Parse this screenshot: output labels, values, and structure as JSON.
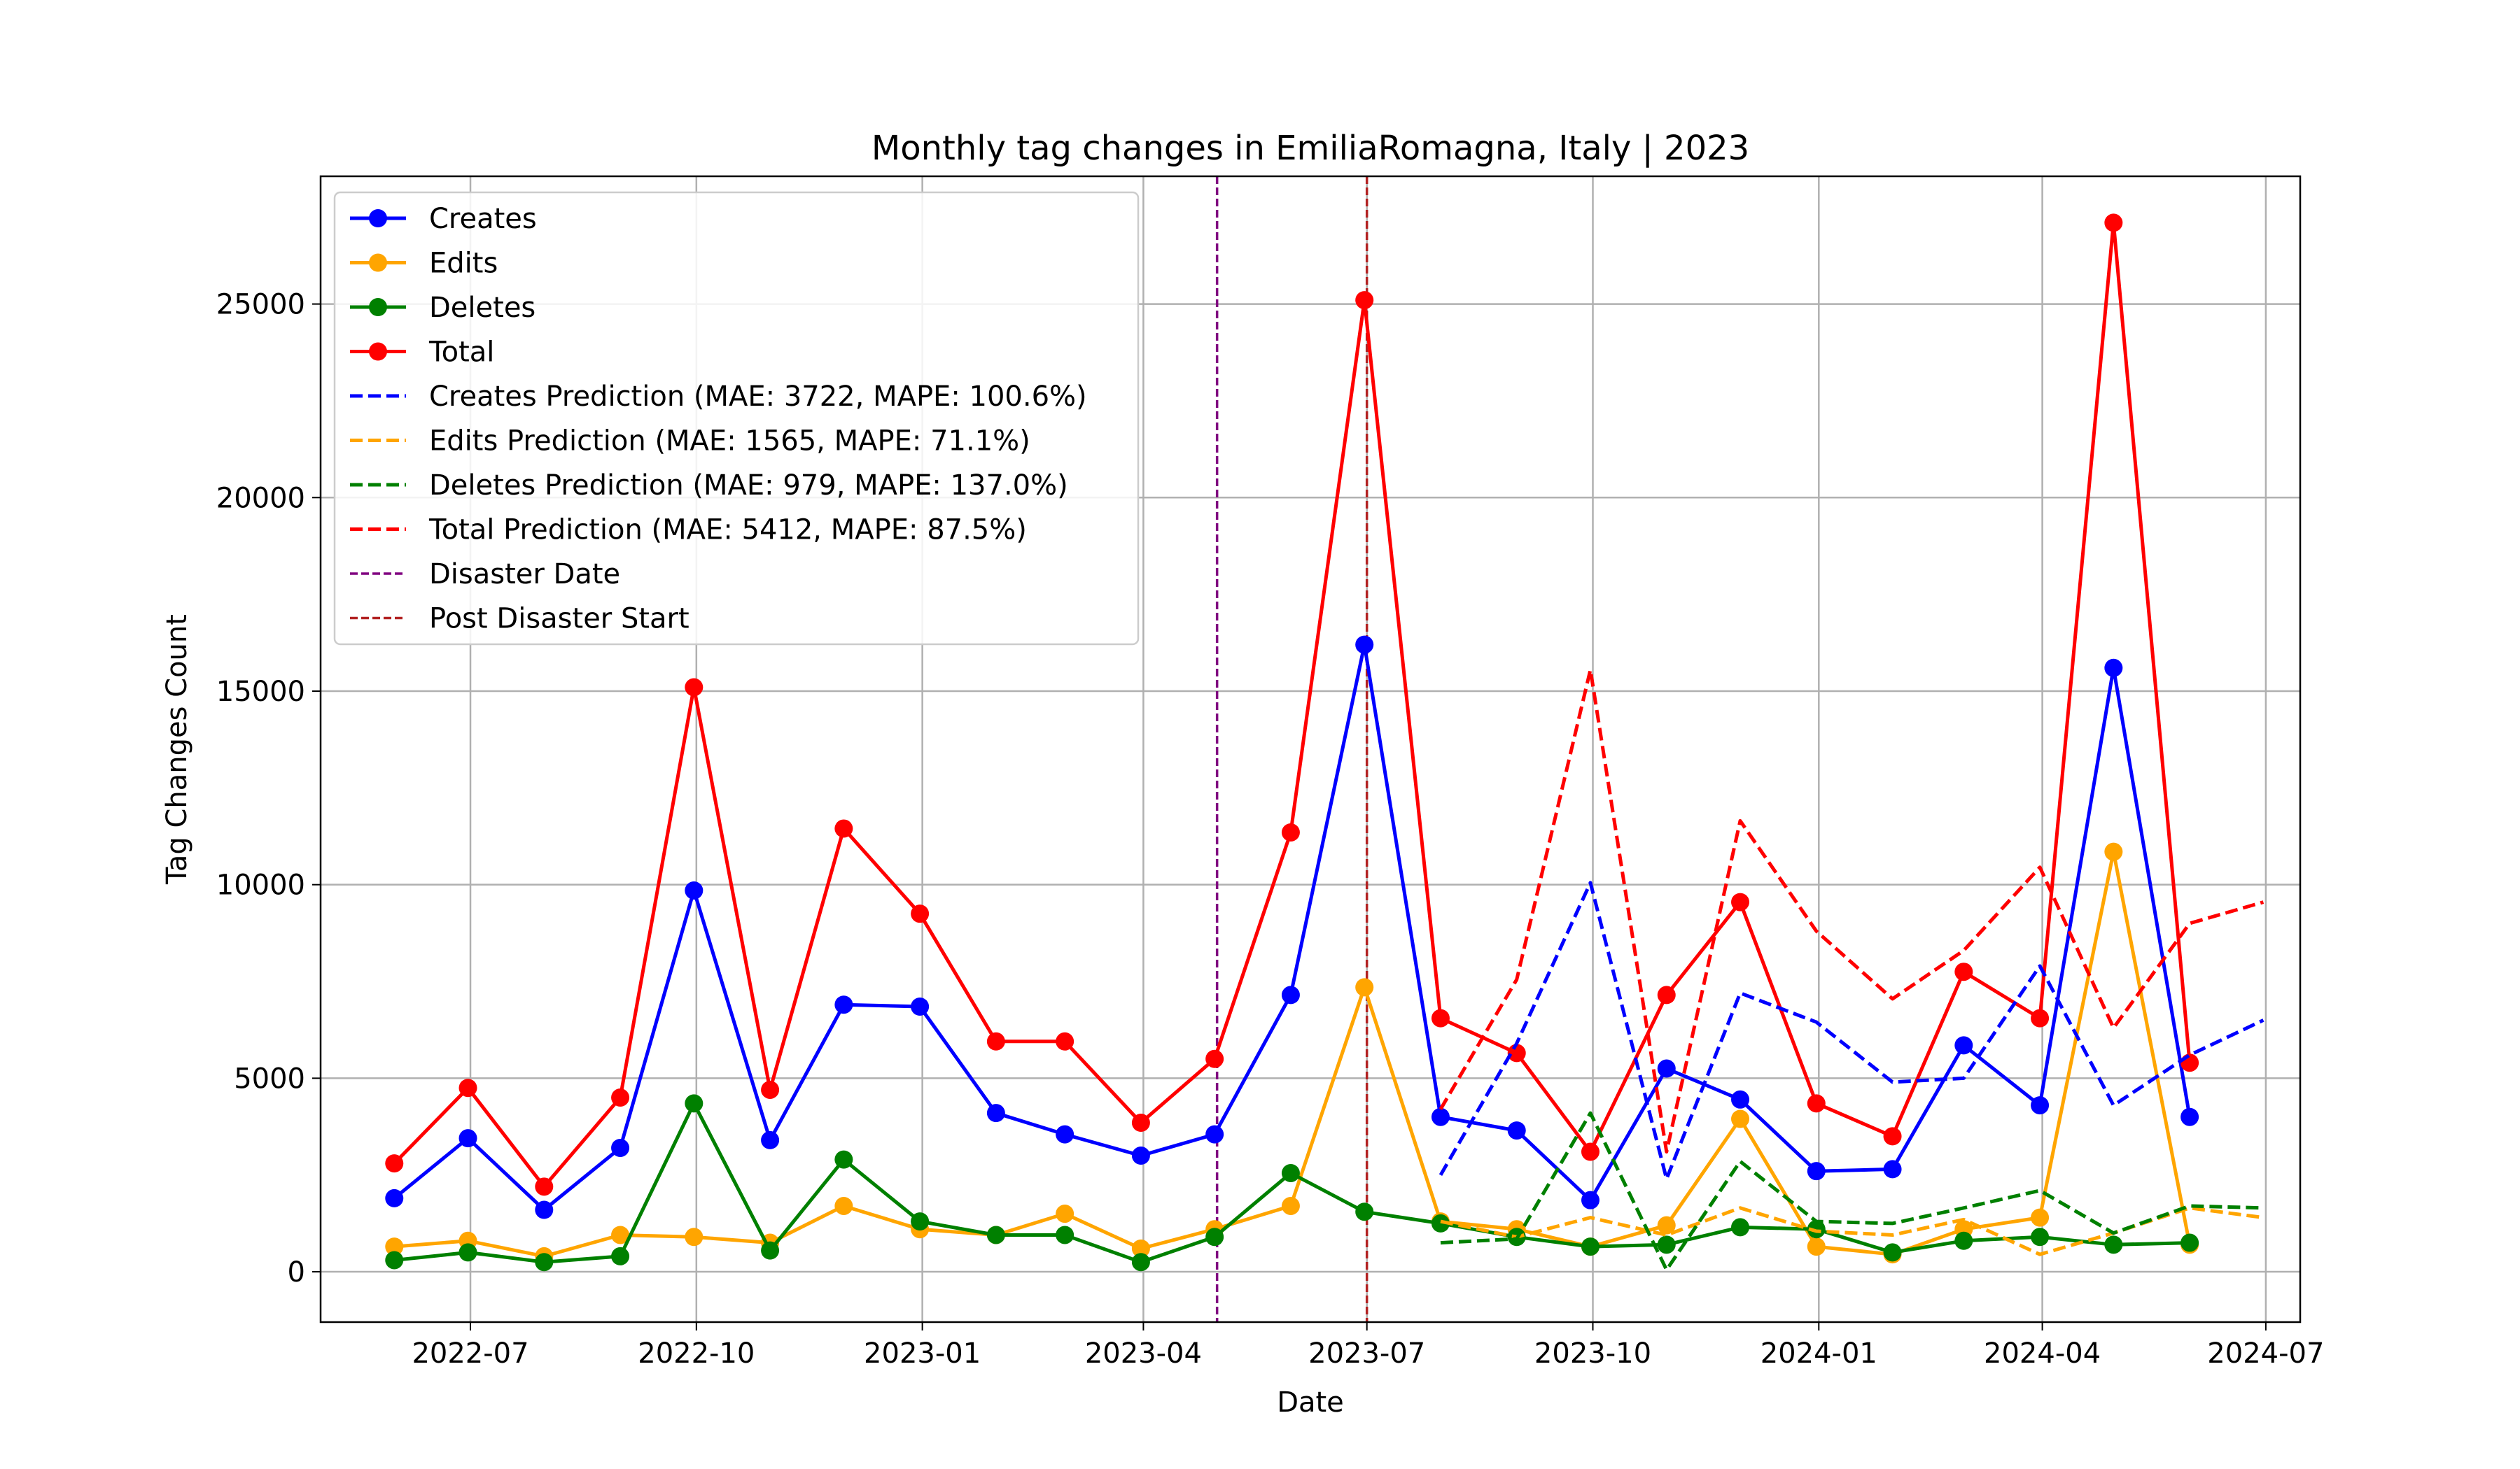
{
  "chart_data": {
    "type": "line",
    "title": "Monthly tag changes in EmiliaRomagna, Italy | 2023",
    "xlabel": "Date",
    "ylabel": "Tag Changes Count",
    "xlim": [
      "2022-05-01",
      "2024-07-15"
    ],
    "ylim": [
      -1300,
      28300
    ],
    "x_ticks": [
      "2022-07",
      "2022-10",
      "2023-01",
      "2023-04",
      "2023-07",
      "2023-10",
      "2024-01",
      "2024-04",
      "2024-07"
    ],
    "y_ticks": [
      0,
      5000,
      10000,
      15000,
      20000,
      25000
    ],
    "y_tick_labels": [
      "0",
      "5000",
      "10000",
      "15000",
      "20000",
      "25000"
    ],
    "grid": true,
    "legend_position": "top-left",
    "x_dates": [
      "2022-05-31",
      "2022-06-30",
      "2022-07-31",
      "2022-08-31",
      "2022-09-30",
      "2022-10-31",
      "2022-11-30",
      "2022-12-31",
      "2023-01-31",
      "2023-02-28",
      "2023-03-31",
      "2023-04-30",
      "2023-05-31",
      "2023-06-30",
      "2023-07-31",
      "2023-08-31",
      "2023-09-30",
      "2023-10-31",
      "2023-11-30",
      "2023-12-31",
      "2024-01-31",
      "2024-02-29",
      "2024-03-31",
      "2024-04-30",
      "2024-05-31"
    ],
    "series": [
      {
        "name": "Creates",
        "color": "#0000ff",
        "style": "solid-markers",
        "values": [
          1900,
          3450,
          1600,
          3200,
          9850,
          3400,
          6900,
          6850,
          4100,
          3550,
          3000,
          3550,
          7150,
          16200,
          4000,
          3650,
          1850,
          5250,
          4450,
          2600,
          2650,
          5850,
          4300,
          15600,
          4000
        ]
      },
      {
        "name": "Edits",
        "color": "#ffa500",
        "style": "solid-markers",
        "values": [
          650,
          800,
          400,
          950,
          900,
          750,
          1700,
          1100,
          950,
          1500,
          600,
          1100,
          1700,
          7350,
          1300,
          1100,
          650,
          1200,
          3950,
          650,
          450,
          1100,
          1400,
          10850,
          700
        ]
      },
      {
        "name": "Deletes",
        "color": "#008000",
        "style": "solid-markers",
        "values": [
          300,
          500,
          250,
          400,
          4350,
          550,
          2900,
          1300,
          950,
          950,
          250,
          900,
          2550,
          1550,
          1250,
          900,
          650,
          700,
          1150,
          1100,
          500,
          800,
          900,
          700,
          750
        ]
      },
      {
        "name": "Total",
        "color": "#ff0000",
        "style": "solid-markers",
        "values": [
          2800,
          4750,
          2200,
          4500,
          15100,
          4700,
          11450,
          9250,
          5950,
          5950,
          3850,
          5500,
          11350,
          25100,
          6550,
          5650,
          3100,
          7150,
          9550,
          4350,
          3500,
          7750,
          6550,
          27100,
          5400
        ]
      },
      {
        "name": "Creates Prediction (MAE: 3722, MAPE: 100.6%)",
        "color": "#0000ff",
        "style": "dashed",
        "x": [
          "2023-07-31",
          "2023-08-31",
          "2023-09-30",
          "2023-10-31",
          "2023-11-30",
          "2023-12-31",
          "2024-01-31",
          "2024-02-29",
          "2024-03-31",
          "2024-04-30",
          "2024-05-31",
          "2024-06-30"
        ],
        "values": [
          2500,
          5900,
          10050,
          2400,
          7200,
          6450,
          4900,
          5000,
          7900,
          4300,
          5600,
          6500
        ]
      },
      {
        "name": "Edits Prediction (MAE: 1565, MAPE: 71.1%)",
        "color": "#ffa500",
        "style": "dashed",
        "x": [
          "2023-07-31",
          "2023-08-31",
          "2023-09-30",
          "2023-10-31",
          "2023-11-30",
          "2023-12-31",
          "2024-01-31",
          "2024-02-29",
          "2024-03-31",
          "2024-04-30",
          "2024-05-31",
          "2024-06-30"
        ],
        "values": [
          1300,
          900,
          1400,
          950,
          1650,
          1050,
          950,
          1350,
          450,
          1000,
          1650,
          1400
        ]
      },
      {
        "name": "Deletes Prediction (MAE: 979, MAPE: 137.0%)",
        "color": "#008000",
        "style": "dashed",
        "x": [
          "2023-07-31",
          "2023-08-31",
          "2023-09-30",
          "2023-10-31",
          "2023-11-30",
          "2023-12-31",
          "2024-01-31",
          "2024-02-29",
          "2024-03-31",
          "2024-04-30",
          "2024-05-31",
          "2024-06-30"
        ],
        "values": [
          750,
          850,
          4100,
          50,
          2850,
          1300,
          1250,
          1650,
          2100,
          1000,
          1700,
          1650
        ]
      },
      {
        "name": "Total Prediction (MAE: 5412, MAPE: 87.5%)",
        "color": "#ff0000",
        "style": "dashed",
        "x": [
          "2023-07-31",
          "2023-08-31",
          "2023-09-30",
          "2023-10-31",
          "2023-11-30",
          "2023-12-31",
          "2024-01-31",
          "2024-02-29",
          "2024-03-31",
          "2024-04-30",
          "2024-05-31",
          "2024-06-30"
        ],
        "values": [
          4200,
          7550,
          15550,
          3100,
          11650,
          8800,
          7050,
          8300,
          10450,
          6300,
          9000,
          9550
        ]
      }
    ],
    "vlines": [
      {
        "name": "Disaster Date",
        "x": "2023-05-01",
        "color": "#800080"
      },
      {
        "name": "Post Disaster Start",
        "x": "2023-07-01",
        "color": "#b22222"
      }
    ]
  }
}
